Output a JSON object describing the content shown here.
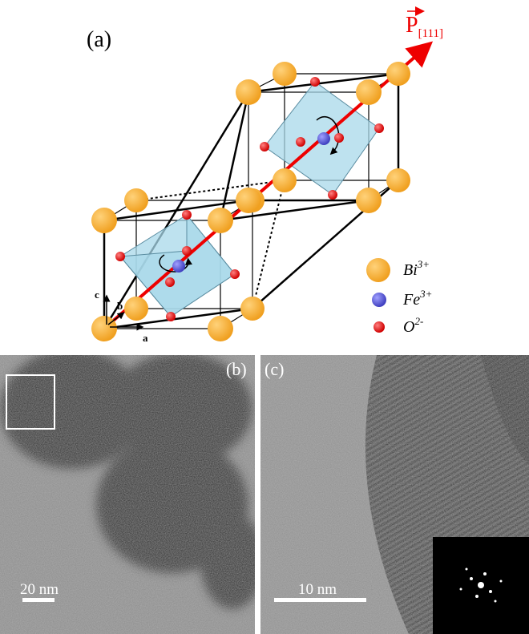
{
  "panel_a": {
    "label": "(a)",
    "vector": {
      "symbol": "P",
      "subscript": "[111]"
    },
    "axes": {
      "c": "c",
      "b": "b",
      "a": "a"
    },
    "legend": [
      {
        "name": "Bi",
        "charge": "3+"
      },
      {
        "name": "Fe",
        "charge": "3+"
      },
      {
        "name": "O",
        "charge": "2-"
      }
    ]
  },
  "panel_b": {
    "label": "(b)",
    "scale_bar": "20 nm"
  },
  "panel_c": {
    "label": "(c)",
    "scale_bar": "10 nm"
  }
}
